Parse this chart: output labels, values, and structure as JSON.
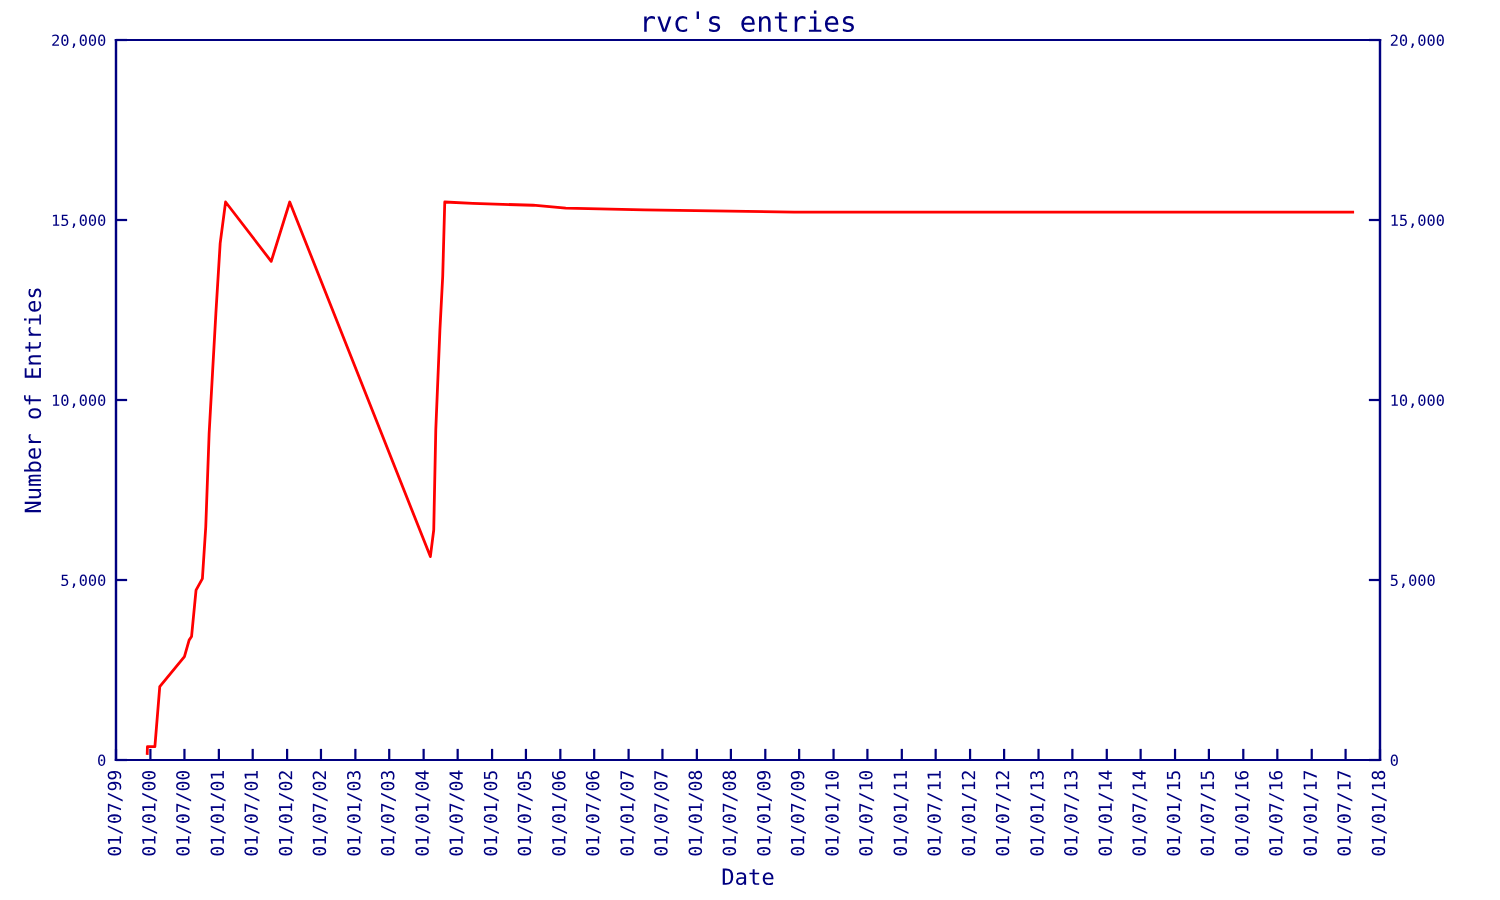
{
  "chart_data": {
    "type": "line",
    "title": "rvc's entries",
    "xlabel": "Date",
    "ylabel": "Number of Entries",
    "x": [
      "1999-12-15",
      "1999-12-16",
      "2000-01-25",
      "2000-02-20",
      "2000-07-01",
      "2000-07-26",
      "2000-08-08",
      "2000-09-01",
      "2000-10-05",
      "2000-10-23",
      "2000-11-10",
      "2000-11-28",
      "2000-12-16",
      "2001-01-08",
      "2001-02-06",
      "2001-10-08",
      "2002-01-15",
      "2004-02-06",
      "2004-02-24",
      "2004-03-06",
      "2004-03-28",
      "2004-04-12",
      "2004-04-23",
      "2004-09-20",
      "2005-08-08",
      "2006-01-30",
      "2007-03-25",
      "2009-06-05",
      "2017-08-08"
    ],
    "series": [
      {
        "color": "#ff0000",
        "values": [
          180,
          370,
          370,
          2040,
          2870,
          3330,
          3430,
          4720,
          5040,
          6480,
          9070,
          10740,
          12400,
          14350,
          15500,
          13850,
          15500,
          5650,
          6390,
          9170,
          11940,
          13430,
          15500,
          15460,
          15410,
          15330,
          15280,
          15220,
          15220
        ]
      }
    ],
    "xlim": [
      "1999-07-01",
      "2018-01-01"
    ],
    "xticks": [
      {
        "value": "1999-07-01",
        "label": "01/07/99"
      },
      {
        "value": "2000-01-01",
        "label": "01/01/00"
      },
      {
        "value": "2000-07-01",
        "label": "01/07/00"
      },
      {
        "value": "2001-01-01",
        "label": "01/01/01"
      },
      {
        "value": "2001-07-01",
        "label": "01/07/01"
      },
      {
        "value": "2002-01-01",
        "label": "01/01/02"
      },
      {
        "value": "2002-07-01",
        "label": "01/07/02"
      },
      {
        "value": "2003-01-01",
        "label": "01/01/03"
      },
      {
        "value": "2003-07-01",
        "label": "01/07/03"
      },
      {
        "value": "2004-01-01",
        "label": "01/01/04"
      },
      {
        "value": "2004-07-01",
        "label": "01/07/04"
      },
      {
        "value": "2005-01-01",
        "label": "01/01/05"
      },
      {
        "value": "2005-07-01",
        "label": "01/07/05"
      },
      {
        "value": "2006-01-01",
        "label": "01/01/06"
      },
      {
        "value": "2006-07-01",
        "label": "01/07/06"
      },
      {
        "value": "2007-01-01",
        "label": "01/01/07"
      },
      {
        "value": "2007-07-01",
        "label": "01/07/07"
      },
      {
        "value": "2008-01-01",
        "label": "01/01/08"
      },
      {
        "value": "2008-07-01",
        "label": "01/07/08"
      },
      {
        "value": "2009-01-01",
        "label": "01/01/09"
      },
      {
        "value": "2009-07-01",
        "label": "01/07/09"
      },
      {
        "value": "2010-01-01",
        "label": "01/01/10"
      },
      {
        "value": "2010-07-01",
        "label": "01/07/10"
      },
      {
        "value": "2011-01-01",
        "label": "01/01/11"
      },
      {
        "value": "2011-07-01",
        "label": "01/07/11"
      },
      {
        "value": "2012-01-01",
        "label": "01/01/12"
      },
      {
        "value": "2012-07-01",
        "label": "01/07/12"
      },
      {
        "value": "2013-01-01",
        "label": "01/01/13"
      },
      {
        "value": "2013-07-01",
        "label": "01/07/13"
      },
      {
        "value": "2014-01-01",
        "label": "01/01/14"
      },
      {
        "value": "2014-07-01",
        "label": "01/07/14"
      },
      {
        "value": "2015-01-01",
        "label": "01/01/15"
      },
      {
        "value": "2015-07-01",
        "label": "01/07/15"
      },
      {
        "value": "2016-01-01",
        "label": "01/01/16"
      },
      {
        "value": "2016-07-01",
        "label": "01/07/16"
      },
      {
        "value": "2017-01-01",
        "label": "01/01/17"
      },
      {
        "value": "2017-07-01",
        "label": "01/07/17"
      },
      {
        "value": "2018-01-01",
        "label": "01/01/18"
      }
    ],
    "ylim": [
      0,
      20000
    ],
    "yticks": [
      0,
      {
        "value": 5000,
        "label": "5,000"
      },
      {
        "value": 10000,
        "label": "10,000"
      },
      {
        "value": 15000,
        "label": "15,000"
      },
      {
        "value": 20000,
        "label": "20,000"
      }
    ],
    "y2lim": [
      0,
      20000
    ],
    "y2ticks": [
      0,
      {
        "value": 5000,
        "label": "5,000"
      },
      {
        "value": 10000,
        "label": "10,000"
      },
      {
        "value": 15000,
        "label": "15,000"
      },
      {
        "value": 20000,
        "label": "20,000"
      }
    ],
    "grid": false,
    "legend": false,
    "marker": "none",
    "line_style": "solid"
  }
}
